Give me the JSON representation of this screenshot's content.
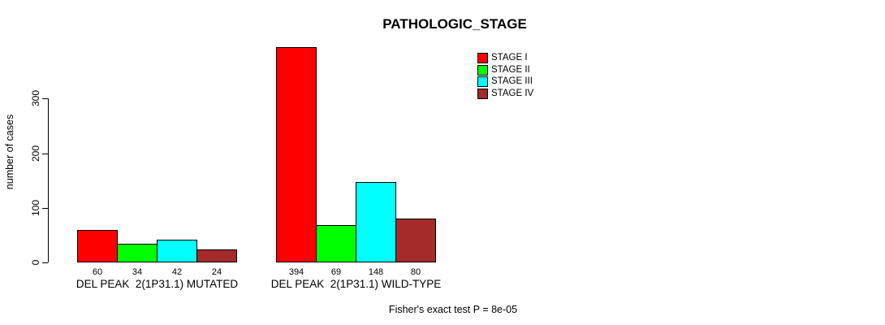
{
  "chart_data": {
    "type": "bar",
    "title": "PATHOLOGIC_STAGE",
    "ylabel": "number of cases",
    "xlabel": "",
    "categories": [
      "DEL PEAK  2(1P31.1) MUTATED",
      "DEL PEAK  2(1P31.1) WILD-TYPE"
    ],
    "series": [
      {
        "name": "STAGE I",
        "color": "#ff0000",
        "values": [
          60,
          394
        ]
      },
      {
        "name": "STAGE II",
        "color": "#00ff00",
        "values": [
          34,
          69
        ]
      },
      {
        "name": "STAGE III",
        "color": "#00ffff",
        "values": [
          42,
          148
        ]
      },
      {
        "name": "STAGE IV",
        "color": "#a52a2a",
        "values": [
          24,
          80
        ]
      }
    ],
    "yticks": [
      0,
      100,
      200,
      300
    ],
    "ylim": [
      0,
      394
    ],
    "grid": false,
    "bar_value_labels_shown": true,
    "legend_position": "top-right",
    "legend_entries": [
      "STAGE I",
      "STAGE II",
      "STAGE III",
      "STAGE IV"
    ],
    "annotation": "Fisher's exact test P = 8e-05"
  },
  "colors": {
    "background": "#ffffff",
    "axis": "#000000",
    "text": "#000000",
    "stage1": "#ff0000",
    "stage2": "#00ff00",
    "stage3": "#00ffff",
    "stage4": "#a52a2a"
  }
}
